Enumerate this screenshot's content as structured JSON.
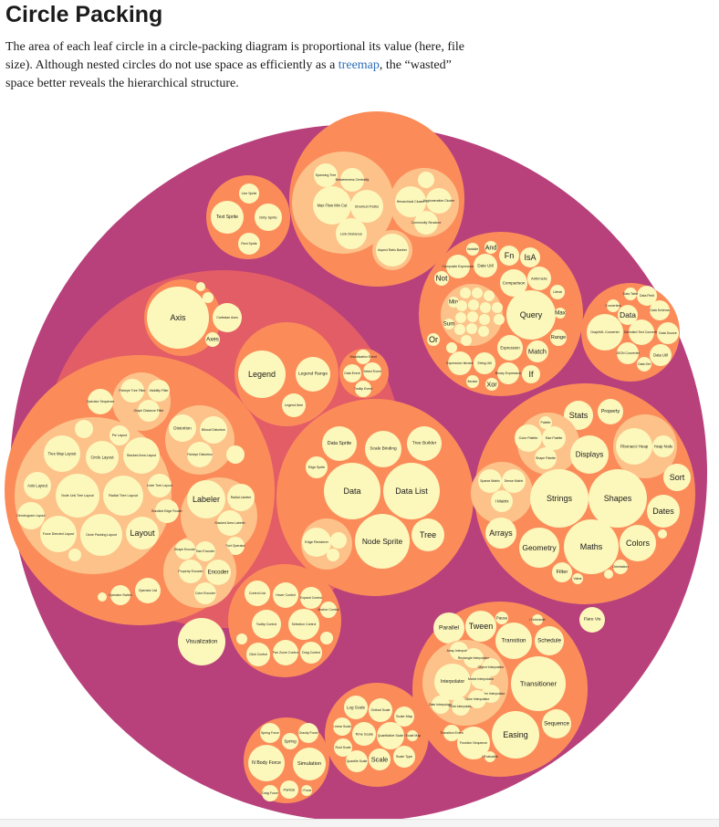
{
  "header": {
    "title": "Circle Packing",
    "description_before_link": "The area of each leaf circle in a circle-packing diagram is proportional its value (here, file size). Although nested circles do not use space as efficiently as a ",
    "link_text": "treemap",
    "description_after_link": ", the “wasted” space better reveals the hierarchical structure."
  },
  "colors": {
    "depth0": "#b8417b",
    "depth1": "#e35d67",
    "depth2": "#fb8c5a",
    "depth3": "#fcc28a",
    "leaf": "#fcf7bb",
    "link": "#2f6eba"
  },
  "diagram": {
    "root": "flare",
    "groups": [
      {
        "name": "Visualization group",
        "labels": [
          "Axis",
          "Cartesian Axes",
          "Axes",
          "Legend",
          "Legend Range",
          "Legend Item",
          "Visualization",
          "Data Sprite",
          "Scale Binding",
          "Tree Builder",
          "Edge Sprite",
          "Data",
          "Data List",
          "Edge Renderer",
          "Node Sprite",
          "Tree",
          "Labeler",
          "Radial Labeler",
          "Stacked Area Labeler",
          "Sort Operator",
          "Shape Encoder",
          "Size Encoder",
          "Property Encoder",
          "Encoder",
          "Color Encoder",
          "Operator List",
          "Operator Switch",
          "Distortion",
          "Bifocal Distortion",
          "Fisheye Distortion",
          "Tree Map Layout",
          "Circle Layout",
          "Stacked Area Layout",
          "Axis Layout",
          "Node Link Tree Layout",
          "Radial Tree Layout",
          "Icicle Tree Layout",
          "Bundled Edge Router",
          "Dendrogram Layout",
          "Force Directed Layout",
          "Circle Packing Layout",
          "Layout",
          "Pie Layout",
          "Fisheye Tree Filter",
          "Visibility Filter",
          "Graph Distance Filter",
          "Operator Sequence",
          "Control List",
          "Hover Control",
          "Expand Control",
          "Anchor Control",
          "Tooltip Control",
          "Selection Control",
          "Pan Zoom Control",
          "Click Control",
          "Drag Control",
          "Data Event",
          "Select Event",
          "Tooltip Event",
          "Visualization Event"
        ]
      },
      {
        "name": "Display group",
        "labels": [
          "Line Sprite",
          "Text Sprite",
          "Dirty Sprite",
          "Rect Sprite"
        ]
      },
      {
        "name": "Analytics group",
        "labels": [
          "Spanning Tree",
          "Betweenness Centrality",
          "Max Flow Min Cut",
          "Shortest Paths",
          "Link Distance",
          "Hierarchical Cluster",
          "Agglomerative Cluster",
          "Community Structure",
          "Aspect Ratio Banker"
        ]
      },
      {
        "name": "Query group",
        "labels": [
          "Query",
          "Date Util",
          "Fn",
          "IsA",
          "And",
          "Variable",
          "Comparison",
          "Arithmetic",
          "Composite Expression",
          "Not",
          "Expression",
          "Match",
          "Expression Iterator",
          "String Util",
          "Binary Expression",
          "If",
          "Literal",
          "Or",
          "Range",
          "Xor",
          "Iterator",
          "Sum",
          "Min",
          "Max",
          "Average",
          "Distinct",
          "Count",
          "Where",
          "Update",
          "Select",
          "Variance",
          "Or Query"
        ]
      },
      {
        "name": "Data group",
        "labels": [
          "GraphML Converter",
          "Data Field",
          "Data Schema",
          "Data",
          "Delimited Text Converter",
          "Data Source",
          "JSON Converter",
          "Data Util",
          "Data Set",
          "Converters",
          "Data Table"
        ]
      },
      {
        "name": "Util group",
        "labels": [
          "Stats",
          "Property",
          "Color Palette",
          "Size Palette",
          "Shape Palette",
          "Fibonacci Heap",
          "Heap Node",
          "Displays",
          "Sparse Matrix",
          "Dense Matrix",
          "I Matrix",
          "Strings",
          "Shapes",
          "Sort",
          "Dates",
          "Arrays",
          "Geometry",
          "Maths",
          "Colors",
          "Filter",
          "Orientation",
          "Value",
          "Arrays",
          "Palette"
        ]
      },
      {
        "name": "Flare Vis group",
        "labels": [
          "Flare Vis"
        ]
      },
      {
        "name": "Animate group",
        "labels": [
          "Parallel",
          "Tween",
          "Pause",
          "Transition",
          "Schedule",
          "Array Interpolator",
          "Rectangle Interpolator",
          "Object Interpolator",
          "Interpolator",
          "Matrix Interpolator",
          "Number Interpolator",
          "Date Interpolator",
          "Point Interpolator",
          "Color Interpolator",
          "Transitioner",
          "Sequence",
          "Function Sequence",
          "Easing",
          "Transition Event",
          "I Evaluable",
          "I Scheduler"
        ]
      },
      {
        "name": "Scale group",
        "labels": [
          "Log Scale",
          "Ordinal Scale",
          "Scale Map",
          "Linear Scale",
          "Time Scale",
          "Quantitative Scale",
          "Root Scale",
          "Quantile Scale",
          "Scale",
          "Scale Type",
          "I Scale Map"
        ]
      },
      {
        "name": "Physics group",
        "labels": [
          "Spring Force",
          "Gravity Force",
          "Spring",
          "N Body Force",
          "Simulation",
          "Drag Force",
          "Particle",
          "I Force"
        ]
      }
    ]
  }
}
